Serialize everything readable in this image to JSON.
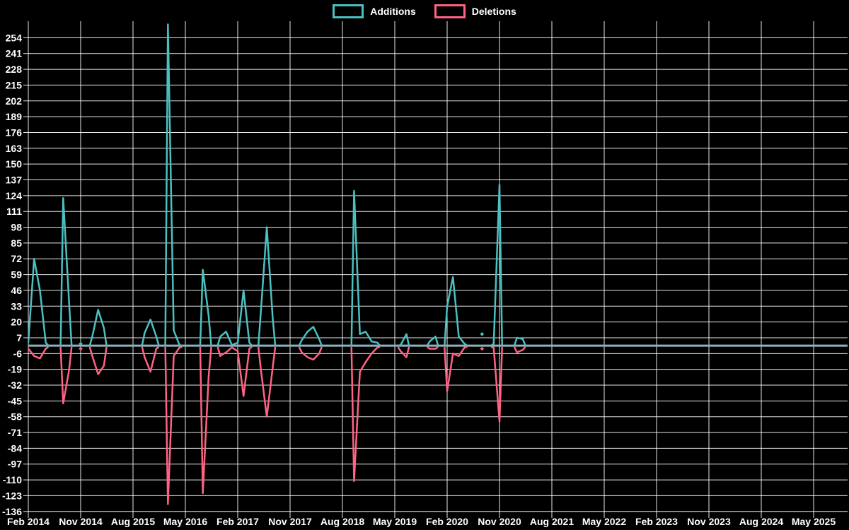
{
  "legend": {
    "items": [
      {
        "label": "Additions",
        "color": "#4bc0c0"
      },
      {
        "label": "Deletions",
        "color": "#ff6384"
      }
    ]
  },
  "chart_data": {
    "type": "line",
    "title": "",
    "xlabel": "",
    "ylabel": "",
    "x_start_month": "Feb 2014",
    "x_end_month": "Oct 2025",
    "x_tick_labels": [
      "Feb 2014",
      "Nov 2014",
      "Aug 2015",
      "May 2016",
      "Feb 2017",
      "Nov 2017",
      "Aug 2018",
      "May 2019",
      "Feb 2020",
      "Nov 2020",
      "Aug 2021",
      "May 2022",
      "Feb 2023",
      "Nov 2023",
      "Aug 2024",
      "May 2025"
    ],
    "x_tick_step_months": 9,
    "y_ticks": [
      254,
      241,
      228,
      215,
      202,
      189,
      176,
      163,
      150,
      137,
      124,
      111,
      98,
      85,
      72,
      59,
      46,
      33,
      20,
      7,
      -6,
      -19,
      -32,
      -45,
      -58,
      -71,
      -84,
      -97,
      -110,
      -123,
      -136
    ],
    "ylim": [
      -142,
      266
    ],
    "grid": true,
    "legend_position": "top-center",
    "background_color": "#000000",
    "grid_color": "rgba(255,255,255,0.9)",
    "zero_line_color": "#8fb3be",
    "series": [
      {
        "name": "Additions",
        "color": "#4bc0c0",
        "values": [
          3,
          72,
          46,
          3,
          null,
          null,
          122,
          37,
          null,
          2,
          null,
          8,
          30,
          15,
          null,
          null,
          null,
          null,
          null,
          null,
          11,
          22,
          8,
          null,
          265,
          13,
          1,
          null,
          null,
          null,
          63,
          25,
          null,
          8,
          12,
          1,
          3,
          46,
          3,
          null,
          30,
          98,
          24,
          null,
          null,
          null,
          null,
          5,
          12,
          16,
          6,
          null,
          null,
          null,
          null,
          null,
          128,
          10,
          12,
          4,
          3,
          null,
          null,
          null,
          1,
          10,
          null,
          null,
          null,
          4,
          8,
          null,
          33,
          57,
          8,
          2,
          null,
          null,
          10,
          null,
          2,
          133,
          null,
          null,
          7,
          6,
          null,
          null,
          null,
          null,
          null,
          null,
          null,
          null,
          null,
          null,
          null,
          null,
          null,
          null,
          null,
          null,
          null,
          null,
          null,
          null,
          null,
          null,
          null,
          null,
          null,
          null,
          null,
          null,
          null,
          null,
          null,
          null,
          null,
          null,
          null,
          null,
          null,
          null,
          null,
          null,
          null,
          null,
          null,
          null,
          null,
          null,
          null,
          null,
          null,
          null,
          null,
          null,
          null,
          null,
          null
        ]
      },
      {
        "name": "Deletions",
        "color": "#ff6384",
        "values": [
          -2,
          -8,
          -10,
          -2,
          null,
          null,
          -47,
          -20,
          null,
          -2,
          null,
          -8,
          -23,
          -16,
          null,
          null,
          null,
          null,
          null,
          null,
          -9,
          -21,
          -2,
          null,
          -130,
          -8,
          -1,
          null,
          null,
          null,
          -121,
          -25,
          null,
          -8,
          -5,
          -1,
          -4,
          -41,
          -2,
          null,
          -20,
          -58,
          -18,
          null,
          null,
          null,
          null,
          -5,
          -9,
          -11,
          -6,
          null,
          null,
          null,
          null,
          null,
          -111,
          -21,
          -13,
          -6,
          -1,
          null,
          null,
          null,
          -4,
          -9,
          null,
          null,
          null,
          -2,
          -2,
          null,
          -37,
          -6,
          -8,
          -1,
          null,
          null,
          -2,
          null,
          -1,
          -62,
          null,
          null,
          -5,
          -3,
          null,
          null,
          null,
          null,
          null,
          null,
          null,
          null,
          null,
          null,
          null,
          null,
          null,
          null,
          null,
          null,
          null,
          null,
          null,
          null,
          null,
          null,
          null,
          null,
          null,
          null,
          null,
          null,
          null,
          null,
          null,
          null,
          null,
          null,
          null,
          null,
          null,
          null,
          null,
          null,
          null,
          null,
          null,
          null,
          null,
          null,
          null,
          null,
          null,
          null,
          null,
          null,
          null,
          null,
          null
        ]
      }
    ]
  }
}
